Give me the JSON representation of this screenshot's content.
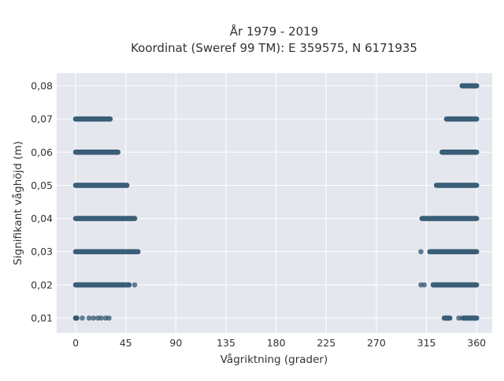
{
  "chart_data": {
    "type": "scatter",
    "title": "År 1979 - 2019",
    "subtitle": "Koordinat (Sweref 99 TM): E 359575, N 6171935",
    "xlabel": "Vågriktning (grader)",
    "ylabel": "Signifikant våghöjd (m)",
    "xlim": [
      -17,
      374
    ],
    "ylim": [
      0.0055,
      0.0838
    ],
    "xticks": [
      0,
      45,
      90,
      135,
      180,
      225,
      270,
      315,
      360
    ],
    "xtick_labels": [
      "0",
      "45",
      "90",
      "135",
      "180",
      "225",
      "270",
      "315",
      "360"
    ],
    "yticks": [
      0.01,
      0.02,
      0.03,
      0.04,
      0.05,
      0.06,
      0.07,
      0.08
    ],
    "ytick_labels": [
      "0,01",
      "0,02",
      "0,03",
      "0,04",
      "0,05",
      "0,06",
      "0,07",
      "0,08"
    ],
    "grid": true,
    "marker_color": "#2f5670",
    "background_color": "#e5e7ef",
    "series": [
      {
        "values": [
          {
            "y": 0.01,
            "ranges": [
              [
                0,
                1
              ]
            ],
            "points": [
              0,
              6,
              12,
              16,
              20,
              23,
              27,
              30
            ]
          },
          {
            "y": 0.02,
            "ranges": [
              [
                0,
                48
              ]
            ],
            "points": [
              53
            ]
          },
          {
            "y": 0.03,
            "ranges": [
              [
                0,
                56
              ]
            ],
            "points": []
          },
          {
            "y": 0.04,
            "ranges": [
              [
                0,
                53
              ]
            ],
            "points": []
          },
          {
            "y": 0.05,
            "ranges": [
              [
                0,
                46
              ]
            ],
            "points": []
          },
          {
            "y": 0.06,
            "ranges": [
              [
                0,
                38
              ]
            ],
            "points": []
          },
          {
            "y": 0.07,
            "ranges": [
              [
                0,
                31
              ]
            ],
            "points": []
          },
          {
            "y": 0.01,
            "ranges": [
              [
                331,
                336
              ],
              [
                349,
                360
              ]
            ],
            "points": [
              344,
              347
            ]
          },
          {
            "y": 0.02,
            "ranges": [
              [
                321,
                360
              ]
            ],
            "points": [
              310,
              313
            ]
          },
          {
            "y": 0.03,
            "ranges": [
              [
                318,
                360
              ]
            ],
            "points": [
              310
            ]
          },
          {
            "y": 0.04,
            "ranges": [
              [
                311,
                360
              ]
            ],
            "points": []
          },
          {
            "y": 0.05,
            "ranges": [
              [
                324,
                360
              ]
            ],
            "points": []
          },
          {
            "y": 0.06,
            "ranges": [
              [
                329,
                360
              ]
            ],
            "points": []
          },
          {
            "y": 0.07,
            "ranges": [
              [
                333,
                360
              ]
            ],
            "points": []
          },
          {
            "y": 0.08,
            "ranges": [
              [
                347,
                360
              ]
            ],
            "points": []
          }
        ]
      }
    ]
  }
}
